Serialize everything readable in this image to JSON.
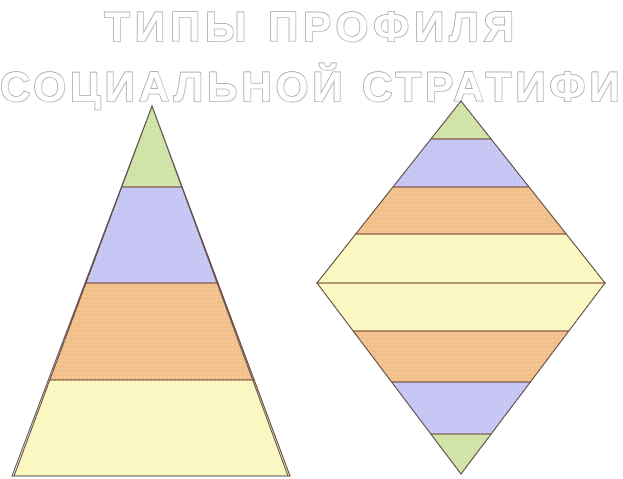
{
  "title": {
    "line1": "ТИПЫ ПРОФИЛЯ",
    "line2": "СОЦИАЛЬНОЙ СТРАТИФИКАЦИИ"
  },
  "colors": {
    "top": "#cfe3a6",
    "upper": "#c6c6f5",
    "middle": "#f2c08a",
    "lower": "#fbf7c0",
    "outline": "#555555",
    "divider": "#6a3a2a"
  },
  "pyramid": {
    "layers": [
      "top",
      "upper",
      "middle",
      "lower"
    ]
  },
  "diamond": {
    "layers": [
      "top",
      "upper",
      "middle",
      "lower",
      "lower",
      "middle",
      "upper",
      "top"
    ]
  }
}
